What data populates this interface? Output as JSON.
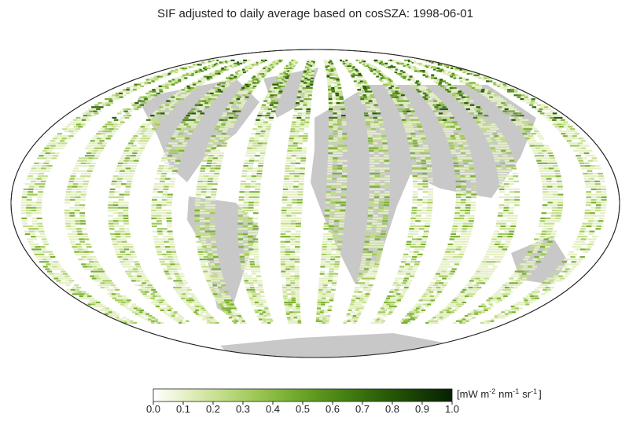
{
  "chart_data": {
    "type": "map",
    "title": "SIF adjusted to daily average based on cosSZA: 1998-06-01",
    "colorbar": {
      "lim": [
        0,
        1
      ],
      "ticks": [
        {
          "value": 0,
          "label": "0.0"
        },
        0.1,
        0.2,
        0.3,
        0.4,
        0.5,
        0.6,
        0.7,
        0.8,
        0.9,
        {
          "value": 1,
          "label": "1.0"
        }
      ],
      "colors": [
        "#ffffff",
        "#e4efc4",
        "#c4de8c",
        "#a0c95a",
        "#7bb134",
        "#5a961c",
        "#3f7a10",
        "#295c08",
        "#163e04",
        "#062002"
      ],
      "unit_parts": [
        {
          "text": "[mW m",
          "sup": "-2"
        },
        {
          "text": "nm",
          "sup": "-1"
        },
        {
          "text": "sr",
          "sup": "-1"
        }
      ],
      "unit_end": "]"
    }
  }
}
